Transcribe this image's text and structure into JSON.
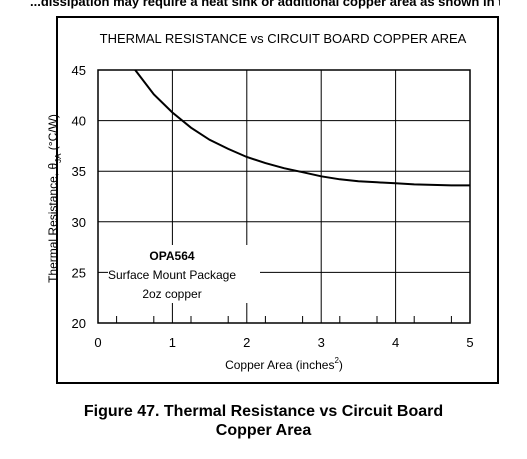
{
  "header_cutoff_text": "...dissipation may require a heat sink or additional copper area as shown in the following",
  "figure_caption_line1": "Figure 47.  Thermal Resistance vs Circuit Board",
  "figure_caption_line2": "Copper Area",
  "chart_data": {
    "type": "line",
    "title": "THERMAL RESISTANCE vs CIRCUIT BOARD COPPER AREA",
    "xlabel": "Copper Area (inches",
    "xlabel_superscript": "2",
    "xlabel_close": ")",
    "ylabel": "Thermal Resistance, θ",
    "ylabel_subscript": "JA",
    "ylabel_unit": " (°C/W)",
    "xlim": [
      0,
      5
    ],
    "ylim": [
      20,
      45
    ],
    "x_ticks": [
      "0",
      "1",
      "2",
      "3",
      "4",
      "5"
    ],
    "y_ticks": [
      "45",
      "40",
      "35",
      "30",
      "25",
      "20"
    ],
    "grid": true,
    "annotation": {
      "title": "OPA564",
      "line1": "Surface Mount Package",
      "line2": "2oz copper"
    },
    "series": [
      {
        "x": [
          0.5,
          0.75,
          1.0,
          1.25,
          1.5,
          1.75,
          2.0,
          2.25,
          2.5,
          2.75,
          3.0,
          3.25,
          3.5,
          3.75,
          4.0,
          4.25,
          4.5,
          4.75,
          5.0
        ],
        "values": [
          45.0,
          42.6,
          40.8,
          39.3,
          38.1,
          37.2,
          36.4,
          35.8,
          35.3,
          34.9,
          34.5,
          34.2,
          34.0,
          33.9,
          33.8,
          33.7,
          33.65,
          33.6,
          33.6
        ]
      }
    ]
  }
}
